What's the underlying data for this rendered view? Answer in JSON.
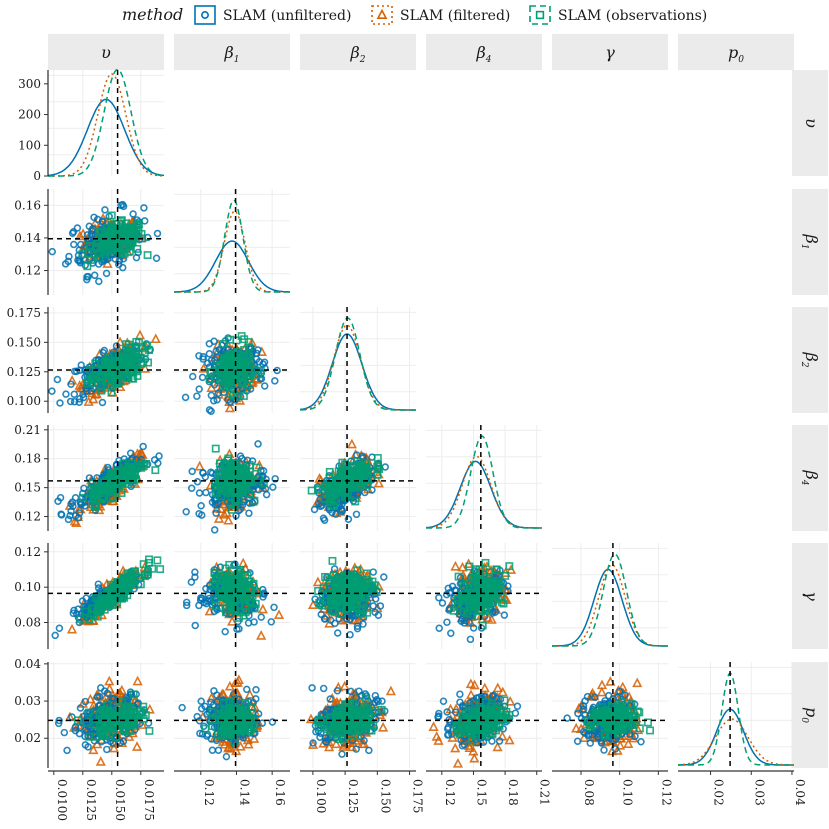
{
  "legend": {
    "title": "method",
    "items": [
      {
        "label": "SLAM (unfiltered)",
        "color": "#0072B2",
        "marker": "circle",
        "dash": "solid"
      },
      {
        "label": "SLAM (filtered)",
        "color": "#D55E00",
        "marker": "triangle",
        "dash": "dotted"
      },
      {
        "label": "SLAM (observations)",
        "color": "#009E73",
        "marker": "square",
        "dash": "dashed"
      }
    ]
  },
  "chart_data": {
    "type": "scatter",
    "title": "",
    "layout": "pairs-matrix-lower-triangle",
    "parameters": [
      {
        "label": "υ",
        "sub": "",
        "range": [
          0.0095,
          0.0195
        ],
        "ticks": [
          0.01,
          0.0125,
          0.015,
          0.0175
        ],
        "tick_labels": [
          "0.0100",
          "0.0125",
          "0.0150",
          "0.0175"
        ],
        "true_value": 0.0155,
        "means": [
          0.0145,
          0.015,
          0.0155
        ],
        "sds": [
          0.0016,
          0.0012,
          0.00115
        ]
      },
      {
        "label": "β",
        "sub": "1",
        "range": [
          0.105,
          0.17
        ],
        "ticks": [
          0.12,
          0.14,
          0.16
        ],
        "tick_labels": [
          "0.12",
          "0.14",
          "0.16"
        ],
        "true_value": 0.1395,
        "means": [
          0.1375,
          0.139,
          0.1385
        ],
        "sds": [
          0.0092,
          0.0058,
          0.0051
        ]
      },
      {
        "label": "β",
        "sub": "2",
        "range": [
          0.09,
          0.18
        ],
        "ticks": [
          0.1,
          0.125,
          0.15,
          0.175
        ],
        "tick_labels": [
          "0.100",
          "0.125",
          "0.150",
          "0.175"
        ],
        "true_value": 0.1265,
        "means": [
          0.1265,
          0.1265,
          0.127
        ],
        "sds": [
          0.0115,
          0.0103,
          0.0095
        ]
      },
      {
        "label": "β",
        "sub": "4",
        "range": [
          0.105,
          0.215
        ],
        "ticks": [
          0.12,
          0.15,
          0.18,
          0.21
        ],
        "tick_labels": [
          "0.12",
          "0.15",
          "0.18",
          "0.21"
        ],
        "true_value": 0.157,
        "means": [
          0.152,
          0.153,
          0.158
        ],
        "sds": [
          0.0145,
          0.0135,
          0.0105
        ]
      },
      {
        "label": "γ",
        "sub": "",
        "range": [
          0.065,
          0.125
        ],
        "ticks": [
          0.08,
          0.1,
          0.12
        ],
        "tick_labels": [
          "0.08",
          "0.10",
          "0.12"
        ],
        "true_value": 0.0965,
        "means": [
          0.094,
          0.096,
          0.0975
        ],
        "sds": [
          0.0072,
          0.0068,
          0.006
        ]
      },
      {
        "label": "p",
        "sub": "0",
        "range": [
          0.012,
          0.0405
        ],
        "ticks": [
          0.02,
          0.03,
          0.04
        ],
        "tick_labels": [
          "0.02",
          "0.03",
          "0.04"
        ],
        "true_value": 0.0248,
        "means": [
          0.0248,
          0.0252,
          0.0248
        ],
        "sds": [
          0.0033,
          0.004,
          0.002
        ]
      }
    ],
    "row_axis": {
      "0": {
        "range": [
          0,
          345
        ],
        "ticks": [
          0,
          100,
          200,
          300
        ],
        "tick_labels": [
          "0",
          "100",
          "200",
          "300"
        ]
      },
      "1": {
        "ticks": [
          0.12,
          0.14,
          0.16
        ],
        "tick_labels": [
          "0.12",
          "0.14",
          "0.16"
        ]
      },
      "2": {
        "ticks": [
          0.1,
          0.125,
          0.15,
          0.175
        ],
        "tick_labels": [
          "0.100",
          "0.125",
          "0.150",
          "0.175"
        ]
      },
      "3": {
        "ticks": [
          0.12,
          0.15,
          0.18,
          0.21
        ],
        "tick_labels": [
          "0.12",
          "0.15",
          "0.18",
          "0.21"
        ]
      },
      "4": {
        "ticks": [
          0.08,
          0.1,
          0.12
        ],
        "tick_labels": [
          "0.08",
          "0.10",
          "0.12"
        ]
      },
      "5": {
        "ticks": [
          0.02,
          0.03,
          0.04
        ],
        "tick_labels": [
          "0.02",
          "0.03",
          "0.04"
        ]
      }
    },
    "correlations": {
      "1-0": 0.3,
      "2-0": 0.6,
      "3-0": 0.8,
      "4-0": 0.9,
      "5-0": 0.25,
      "2-1": 0.1,
      "3-1": 0.2,
      "4-1": -0.2,
      "5-1": 0.05,
      "3-2": 0.6,
      "4-2": 0.1,
      "5-2": 0.2,
      "4-3": 0.3,
      "5-3": 0.3,
      "5-4": 0.0
    },
    "series": [
      {
        "name": "SLAM (unfiltered)"
      },
      {
        "name": "SLAM (filtered)"
      },
      {
        "name": "SLAM (observations)"
      }
    ]
  }
}
